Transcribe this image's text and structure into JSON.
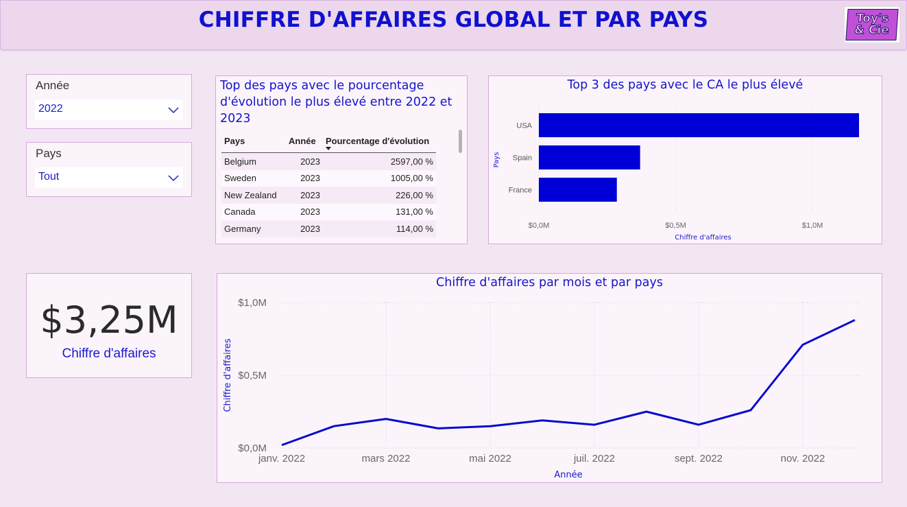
{
  "header": {
    "title": "CHIFFRE D'AFFAIRES GLOBAL ET PAR PAYS",
    "logo_line1": "Toy's",
    "logo_line2": "& Cie"
  },
  "filters": {
    "year": {
      "label": "Année",
      "value": "2022"
    },
    "country": {
      "label": "Pays",
      "value": "Tout"
    }
  },
  "kpi": {
    "value": "$3,25M",
    "label": "Chiffre d'affaires"
  },
  "evolution_table": {
    "title": "Top des pays avec le pourcentage d'évolution le plus élevé entre 2022 et 2023",
    "columns": [
      "Pays",
      "Année",
      "Pourcentage d'évolution"
    ],
    "rows": [
      [
        "Belgium",
        "2023",
        "2597,00 %"
      ],
      [
        "Sweden",
        "2023",
        "1005,00 %"
      ],
      [
        "New Zealand",
        "2023",
        "226,00 %"
      ],
      [
        "Canada",
        "2023",
        "131,00 %"
      ],
      [
        "Germany",
        "2023",
        "114,00 %"
      ]
    ]
  },
  "chart_data": [
    {
      "type": "bar",
      "orientation": "horizontal",
      "title": "Top 3 des pays avec le CA le plus élevé",
      "xlabel": "Chiffre d'affaires",
      "ylabel": "Pays",
      "categories": [
        "USA",
        "Spain",
        "France"
      ],
      "values": [
        1.17,
        0.37,
        0.285
      ],
      "unit": "M$",
      "xlim": [
        0,
        1.2
      ],
      "xticks": [
        "$0,0M",
        "$0,5M",
        "$1,0M"
      ],
      "grid": true,
      "color": "#0000d6"
    },
    {
      "type": "line",
      "title": "Chiffre d'affaires par mois et par pays",
      "xlabel": "Année",
      "ylabel": "Chiffre d'affaires",
      "x": [
        "janv. 2022",
        "févr. 2022",
        "mars 2022",
        "avr. 2022",
        "mai 2022",
        "juin 2022",
        "juil. 2022",
        "août 2022",
        "sept. 2022",
        "oct. 2022",
        "nov. 2022",
        "déc. 2022"
      ],
      "xtick_labels": [
        "janv. 2022",
        "mars 2022",
        "mai 2022",
        "juil. 2022",
        "sept. 2022",
        "nov. 2022"
      ],
      "values": [
        0.02,
        0.15,
        0.2,
        0.135,
        0.15,
        0.19,
        0.16,
        0.25,
        0.16,
        0.26,
        0.71,
        0.88
      ],
      "unit": "M$",
      "ylim": [
        0,
        1.0
      ],
      "yticks": [
        "$0,0M",
        "$0,5M",
        "$1,0M"
      ],
      "grid": true,
      "color": "#0a0acc"
    }
  ]
}
